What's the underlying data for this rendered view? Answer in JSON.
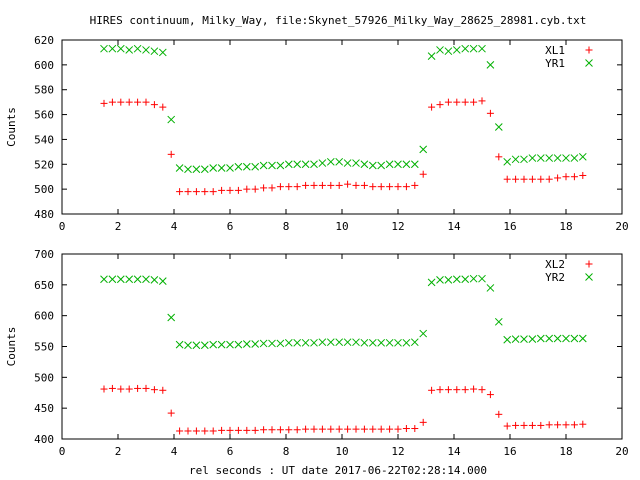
{
  "title": "HIRES continuum, Milky_Way, file:Skynet_57926_Milky_Way_28625_28981.cyb.txt",
  "xlabel": "rel seconds : UT date 2017-06-22T02:28:14.000",
  "colors": {
    "red": "#ff0000",
    "green": "#00b000",
    "axis": "#000000"
  },
  "chart_data": [
    {
      "type": "scatter",
      "xlabel": "",
      "ylabel": "Counts",
      "xlim": [
        0,
        20
      ],
      "ylim": [
        480,
        620
      ],
      "xticks": [
        0,
        2,
        4,
        6,
        8,
        10,
        12,
        14,
        16,
        18,
        20
      ],
      "yticks": [
        480,
        500,
        520,
        540,
        560,
        580,
        600,
        620
      ],
      "grid": false,
      "legend": "top-right",
      "series": [
        {
          "name": "XL1",
          "marker": "plus",
          "color": "#ff0000",
          "x": [
            1.5,
            1.8,
            2.1,
            2.4,
            2.7,
            3.0,
            3.3,
            3.6,
            3.9,
            4.2,
            4.5,
            4.8,
            5.1,
            5.4,
            5.7,
            6.0,
            6.3,
            6.6,
            6.9,
            7.2,
            7.5,
            7.8,
            8.1,
            8.4,
            8.7,
            9.0,
            9.3,
            9.6,
            9.9,
            10.2,
            10.5,
            10.8,
            11.1,
            11.4,
            11.7,
            12.0,
            12.3,
            12.6,
            12.9,
            13.2,
            13.5,
            13.8,
            14.1,
            14.4,
            14.7,
            15.0,
            15.3,
            15.6,
            15.9,
            16.2,
            16.5,
            16.8,
            17.1,
            17.4,
            17.7,
            18.0,
            18.3,
            18.6
          ],
          "y": [
            569,
            570,
            570,
            570,
            570,
            570,
            568,
            566,
            528,
            498,
            498,
            498,
            498,
            498,
            499,
            499,
            499,
            500,
            500,
            501,
            501,
            502,
            502,
            502,
            503,
            503,
            503,
            503,
            503,
            504,
            503,
            503,
            502,
            502,
            502,
            502,
            502,
            503,
            512,
            566,
            568,
            570,
            570,
            570,
            570,
            571,
            561,
            526,
            508,
            508,
            508,
            508,
            508,
            508,
            509,
            510,
            510,
            511
          ],
          "note": ""
        },
        {
          "name": "YR1",
          "marker": "cross",
          "color": "#00b000",
          "x": [
            1.5,
            1.8,
            2.1,
            2.4,
            2.7,
            3.0,
            3.3,
            3.6,
            3.9,
            4.2,
            4.5,
            4.8,
            5.1,
            5.4,
            5.7,
            6.0,
            6.3,
            6.6,
            6.9,
            7.2,
            7.5,
            7.8,
            8.1,
            8.4,
            8.7,
            9.0,
            9.3,
            9.6,
            9.9,
            10.2,
            10.5,
            10.8,
            11.1,
            11.4,
            11.7,
            12.0,
            12.3,
            12.6,
            12.9,
            13.2,
            13.5,
            13.8,
            14.1,
            14.4,
            14.7,
            15.0,
            15.3,
            15.6,
            15.9,
            16.2,
            16.5,
            16.8,
            17.1,
            17.4,
            17.7,
            18.0,
            18.3,
            18.6
          ],
          "y": [
            613,
            613,
            613,
            612,
            613,
            612,
            611,
            610,
            556,
            517,
            516,
            516,
            516,
            517,
            517,
            517,
            518,
            518,
            518,
            519,
            519,
            519,
            520,
            520,
            520,
            520,
            521,
            522,
            522,
            521,
            521,
            520,
            519,
            519,
            520,
            520,
            520,
            520,
            532,
            607,
            612,
            611,
            612,
            613,
            613,
            613,
            600,
            550,
            522,
            524,
            524,
            525,
            525,
            525,
            525,
            525,
            525,
            526
          ],
          "note": ""
        }
      ]
    },
    {
      "type": "scatter",
      "xlabel": "rel seconds : UT date 2017-06-22T02:28:14.000",
      "ylabel": "Counts",
      "xlim": [
        0,
        20
      ],
      "ylim": [
        400,
        700
      ],
      "xticks": [
        0,
        2,
        4,
        6,
        8,
        10,
        12,
        14,
        16,
        18,
        20
      ],
      "yticks": [
        400,
        450,
        500,
        550,
        600,
        650,
        700
      ],
      "grid": false,
      "legend": "top-right",
      "series": [
        {
          "name": "XL2",
          "marker": "plus",
          "color": "#ff0000",
          "x": [
            1.5,
            1.8,
            2.1,
            2.4,
            2.7,
            3.0,
            3.3,
            3.6,
            3.9,
            4.2,
            4.5,
            4.8,
            5.1,
            5.4,
            5.7,
            6.0,
            6.3,
            6.6,
            6.9,
            7.2,
            7.5,
            7.8,
            8.1,
            8.4,
            8.7,
            9.0,
            9.3,
            9.6,
            9.9,
            10.2,
            10.5,
            10.8,
            11.1,
            11.4,
            11.7,
            12.0,
            12.3,
            12.6,
            12.9,
            13.2,
            13.5,
            13.8,
            14.1,
            14.4,
            14.7,
            15.0,
            15.3,
            15.6,
            15.9,
            16.2,
            16.5,
            16.8,
            17.1,
            17.4,
            17.7,
            18.0,
            18.3,
            18.6
          ],
          "y": [
            481,
            482,
            481,
            481,
            482,
            482,
            480,
            479,
            442,
            413,
            413,
            413,
            413,
            413,
            414,
            414,
            414,
            414,
            414,
            415,
            415,
            415,
            415,
            415,
            416,
            416,
            416,
            416,
            416,
            416,
            416,
            416,
            416,
            416,
            416,
            416,
            417,
            417,
            427,
            479,
            480,
            480,
            480,
            480,
            481,
            480,
            472,
            440,
            421,
            422,
            422,
            422,
            422,
            423,
            423,
            423,
            423,
            424
          ],
          "note": ""
        },
        {
          "name": "YR2",
          "marker": "cross",
          "color": "#00b000",
          "x": [
            1.5,
            1.8,
            2.1,
            2.4,
            2.7,
            3.0,
            3.3,
            3.6,
            3.9,
            4.2,
            4.5,
            4.8,
            5.1,
            5.4,
            5.7,
            6.0,
            6.3,
            6.6,
            6.9,
            7.2,
            7.5,
            7.8,
            8.1,
            8.4,
            8.7,
            9.0,
            9.3,
            9.6,
            9.9,
            10.2,
            10.5,
            10.8,
            11.1,
            11.4,
            11.7,
            12.0,
            12.3,
            12.6,
            12.9,
            13.2,
            13.5,
            13.8,
            14.1,
            14.4,
            14.7,
            15.0,
            15.3,
            15.6,
            15.9,
            16.2,
            16.5,
            16.8,
            17.1,
            17.4,
            17.7,
            18.0,
            18.3,
            18.6
          ],
          "y": [
            659,
            659,
            659,
            659,
            659,
            659,
            658,
            656,
            597,
            553,
            552,
            552,
            552,
            553,
            553,
            553,
            553,
            554,
            554,
            555,
            555,
            555,
            556,
            556,
            556,
            556,
            557,
            557,
            557,
            557,
            557,
            556,
            556,
            556,
            556,
            556,
            556,
            557,
            571,
            654,
            658,
            658,
            659,
            659,
            660,
            660,
            645,
            590,
            561,
            562,
            562,
            562,
            563,
            563,
            563,
            563,
            563,
            563
          ],
          "note": ""
        }
      ]
    }
  ]
}
